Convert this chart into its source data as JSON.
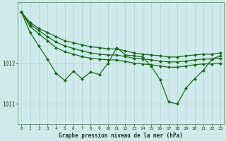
{
  "title": "Graphe pression niveau de la mer (hPa)",
  "bg_color": "#ceeaea",
  "grid_color": "#b0d4d0",
  "line_color": "#1a6b1a",
  "xlim": [
    -0.4,
    23.4
  ],
  "ylim": [
    1010.5,
    1013.5
  ],
  "yticks": [
    1011,
    1012
  ],
  "xticks": [
    0,
    1,
    2,
    3,
    4,
    5,
    6,
    7,
    8,
    9,
    10,
    11,
    12,
    13,
    14,
    15,
    16,
    17,
    18,
    19,
    20,
    21,
    22,
    23
  ],
  "line1": [
    1013.25,
    1013.0,
    1012.85,
    1012.75,
    1012.65,
    1012.55,
    1012.5,
    1012.45,
    1012.4,
    1012.38,
    1012.35,
    1012.35,
    1012.3,
    1012.25,
    1012.22,
    1012.2,
    1012.18,
    1012.15,
    1012.15,
    1012.18,
    1012.2,
    1012.22,
    1012.22,
    1012.25
  ],
  "line2": [
    1013.25,
    1012.95,
    1012.8,
    1012.65,
    1012.52,
    1012.42,
    1012.36,
    1012.3,
    1012.25,
    1012.22,
    1012.2,
    1012.2,
    1012.16,
    1012.12,
    1012.1,
    1012.08,
    1012.05,
    1012.03,
    1012.03,
    1012.05,
    1012.08,
    1012.1,
    1012.1,
    1012.12
  ],
  "line3": [
    1013.25,
    1012.9,
    1012.72,
    1012.55,
    1012.38,
    1012.28,
    1012.22,
    1012.16,
    1012.12,
    1012.1,
    1012.08,
    1012.08,
    1012.04,
    1012.0,
    1011.98,
    1011.96,
    1011.93,
    1011.9,
    1011.9,
    1011.93,
    1011.96,
    1011.98,
    1011.98,
    1012.0
  ],
  "line_volatile": [
    1013.25,
    1012.75,
    1012.42,
    1012.1,
    1011.75,
    1011.58,
    1011.8,
    1011.62,
    1011.78,
    1011.72,
    1012.0,
    1012.38,
    1012.2,
    1012.18,
    1012.15,
    1011.92,
    1011.6,
    1011.05,
    1011.0,
    1011.38,
    1011.62,
    1011.82,
    1012.1,
    1012.18
  ]
}
